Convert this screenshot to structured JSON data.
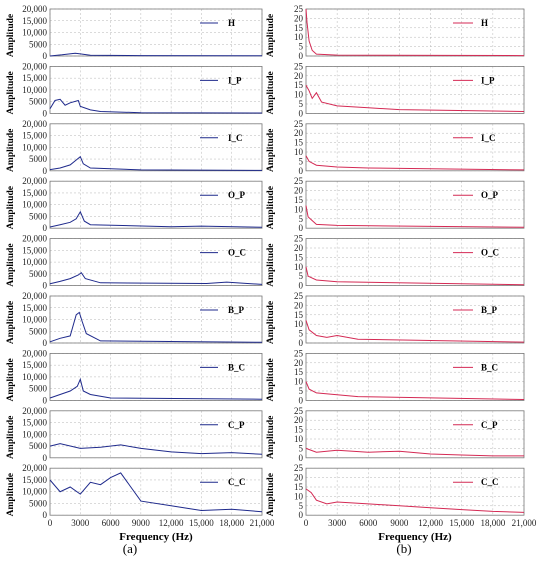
{
  "figure": {
    "caption_a": "(a)",
    "caption_b": "(b)",
    "xlabel": "Frequency (Hz)",
    "ylabel": "Amplitude"
  },
  "colors": {
    "left_series": "#1f2a8c",
    "right_series": "#d42a54",
    "grid": "#b5b5b5",
    "frame": "#7a7a7a"
  },
  "chart_data": [
    {
      "panel": "a",
      "type": "line",
      "xlim": [
        0,
        21000
      ],
      "x_ticks": [
        0,
        3000,
        6000,
        9000,
        12000,
        15000,
        18000,
        21000
      ],
      "x_tick_labels": [
        "0",
        "3000",
        "6000",
        "9000",
        "12,000",
        "15,000",
        "18,000",
        "21,000"
      ],
      "ylim": [
        0,
        20000
      ],
      "y_ticks": [
        0,
        5000,
        10000,
        15000,
        20000
      ],
      "y_tick_labels": [
        "0",
        "5000",
        "10,000",
        "15,000",
        "20,000"
      ],
      "ylabel": "Amplitude",
      "xlabel": "Frequency (Hz)",
      "series": [
        {
          "name": "H",
          "x": [
            0,
            1200,
            2500,
            3000,
            4000,
            9000,
            21000
          ],
          "y": [
            0,
            500,
            1200,
            900,
            300,
            150,
            100
          ]
        },
        {
          "name": "I_P",
          "x": [
            0,
            500,
            1000,
            1500,
            2000,
            2800,
            3000,
            4000,
            5000,
            9000,
            21000
          ],
          "y": [
            2000,
            5500,
            6000,
            3500,
            4500,
            5500,
            3000,
            1500,
            800,
            300,
            150
          ]
        },
        {
          "name": "I_C",
          "x": [
            0,
            1000,
            2000,
            2700,
            3000,
            3300,
            4000,
            9000,
            21000
          ],
          "y": [
            500,
            1200,
            2500,
            5000,
            6000,
            3000,
            1200,
            400,
            150
          ]
        },
        {
          "name": "O_P",
          "x": [
            0,
            1000,
            2000,
            2600,
            3000,
            3400,
            4000,
            12000,
            15000,
            21000
          ],
          "y": [
            500,
            1500,
            2500,
            4000,
            7000,
            3000,
            1500,
            600,
            900,
            400
          ]
        },
        {
          "name": "O_C",
          "x": [
            0,
            1000,
            2000,
            2800,
            3100,
            3500,
            5000,
            15500,
            17500,
            21000
          ],
          "y": [
            800,
            1800,
            3000,
            4500,
            5500,
            3000,
            1200,
            900,
            1500,
            500
          ]
        },
        {
          "name": "B_P",
          "x": [
            0,
            1000,
            2000,
            2600,
            2900,
            3200,
            3600,
            5000,
            21000
          ],
          "y": [
            500,
            2000,
            3000,
            12000,
            13000,
            9000,
            4000,
            900,
            300
          ]
        },
        {
          "name": "B_C",
          "x": [
            0,
            1000,
            2000,
            2700,
            3000,
            3300,
            4000,
            6000,
            21000
          ],
          "y": [
            1000,
            2500,
            4000,
            6000,
            9000,
            4000,
            2500,
            1000,
            500
          ]
        },
        {
          "name": "C_P",
          "x": [
            0,
            1000,
            3000,
            5000,
            7000,
            9000,
            12000,
            15000,
            18000,
            21000
          ],
          "y": [
            5000,
            6000,
            4000,
            4500,
            5500,
            4000,
            2500,
            1800,
            2200,
            1500
          ]
        },
        {
          "name": "C_C",
          "x": [
            0,
            1000,
            2000,
            3000,
            4000,
            5000,
            6000,
            7000,
            8000,
            9000,
            12000,
            15000,
            18000,
            21000
          ],
          "y": [
            15000,
            10000,
            12000,
            9000,
            14000,
            13000,
            16000,
            18000,
            12000,
            6000,
            4000,
            2000,
            2500,
            1500
          ]
        }
      ]
    },
    {
      "panel": "b",
      "type": "line",
      "xlim": [
        0,
        21000
      ],
      "x_ticks": [
        0,
        3000,
        6000,
        9000,
        12000,
        15000,
        18000,
        21000
      ],
      "x_tick_labels": [
        "0",
        "3000",
        "6000",
        "9000",
        "12,000",
        "15,000",
        "18,000",
        "21,000"
      ],
      "ylim": [
        0,
        25
      ],
      "y_ticks": [
        0,
        5,
        10,
        15,
        20,
        25
      ],
      "y_tick_labels": [
        "0",
        "5",
        "10",
        "15",
        "20",
        "25"
      ],
      "ylabel": "Amplitude",
      "xlabel": "Frequency (Hz)",
      "series": [
        {
          "name": "H",
          "x": [
            0,
            100,
            300,
            600,
            1000,
            3000,
            21000
          ],
          "y": [
            25,
            18,
            8,
            3,
            1,
            0.5,
            0.2
          ]
        },
        {
          "name": "I_P",
          "x": [
            0,
            300,
            600,
            1000,
            1500,
            3000,
            6000,
            9000,
            21000
          ],
          "y": [
            15,
            12,
            8,
            11,
            6,
            4,
            3,
            2,
            1
          ]
        },
        {
          "name": "I_C",
          "x": [
            0,
            300,
            1000,
            3000,
            6000,
            21000
          ],
          "y": [
            8,
            5,
            3,
            2,
            1.5,
            0.5
          ]
        },
        {
          "name": "O_P",
          "x": [
            0,
            200,
            1000,
            3000,
            21000
          ],
          "y": [
            12,
            6,
            2,
            1.5,
            0.5
          ]
        },
        {
          "name": "O_C",
          "x": [
            0,
            200,
            1000,
            3000,
            21000
          ],
          "y": [
            10,
            5,
            3,
            2,
            0.5
          ]
        },
        {
          "name": "B_P",
          "x": [
            0,
            300,
            1000,
            2000,
            3000,
            5000,
            21000
          ],
          "y": [
            12,
            7,
            4,
            3,
            4,
            2,
            0.5
          ]
        },
        {
          "name": "B_C",
          "x": [
            0,
            300,
            1000,
            3000,
            5000,
            21000
          ],
          "y": [
            10,
            6,
            4,
            3,
            2,
            0.5
          ]
        },
        {
          "name": "C_P",
          "x": [
            0,
            1000,
            3000,
            6000,
            9000,
            12000,
            15000,
            18000,
            21000
          ],
          "y": [
            5,
            3,
            4,
            3,
            3.5,
            2,
            1.5,
            1,
            1
          ]
        },
        {
          "name": "C_C",
          "x": [
            0,
            500,
            1000,
            2000,
            3000,
            6000,
            9000,
            12000,
            15000,
            18000,
            21000
          ],
          "y": [
            14,
            12,
            8,
            6,
            7,
            6,
            5,
            4,
            3,
            2,
            1.5
          ]
        }
      ]
    }
  ]
}
